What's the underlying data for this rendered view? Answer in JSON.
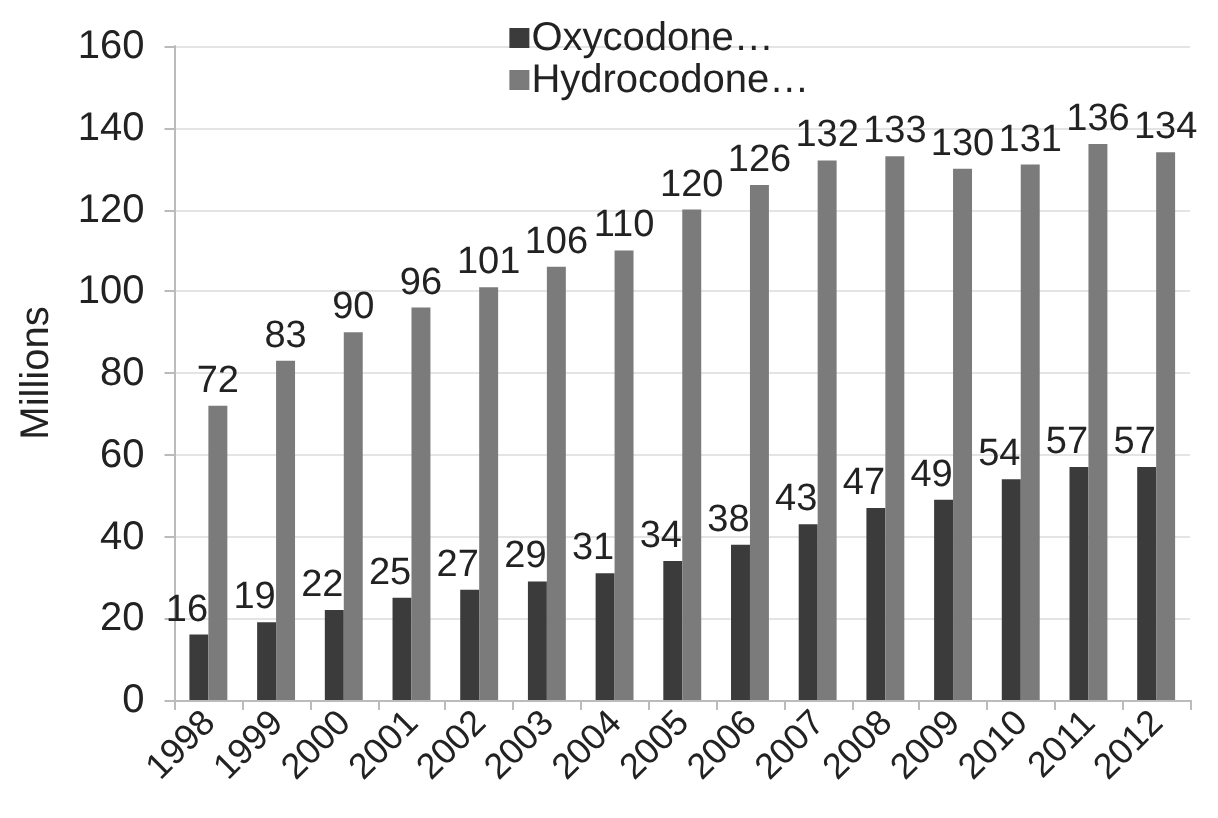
{
  "chart_data": {
    "type": "bar",
    "ylabel": "Millions",
    "categories": [
      "1998",
      "1999",
      "2000",
      "2001",
      "2002",
      "2003",
      "2004",
      "2005",
      "2006",
      "2007",
      "2008",
      "2009",
      "2010",
      "2011",
      "2012"
    ],
    "series": [
      {
        "name": "Oxycodone…",
        "color": "#3b3b3b",
        "values": [
          16,
          19,
          22,
          25,
          27,
          29,
          31,
          34,
          38,
          43,
          47,
          49,
          54,
          57,
          57
        ]
      },
      {
        "name": "Hydrocodone…",
        "color": "#7b7b7b",
        "values": [
          72,
          83,
          90,
          96,
          101,
          106,
          110,
          120,
          126,
          132,
          133,
          130,
          131,
          136,
          134
        ]
      }
    ],
    "ylim": [
      0,
      160
    ],
    "yticks": [
      0,
      20,
      40,
      60,
      80,
      100,
      120,
      140,
      160
    ],
    "grid": "y",
    "legend": "top",
    "data_labels": true
  }
}
